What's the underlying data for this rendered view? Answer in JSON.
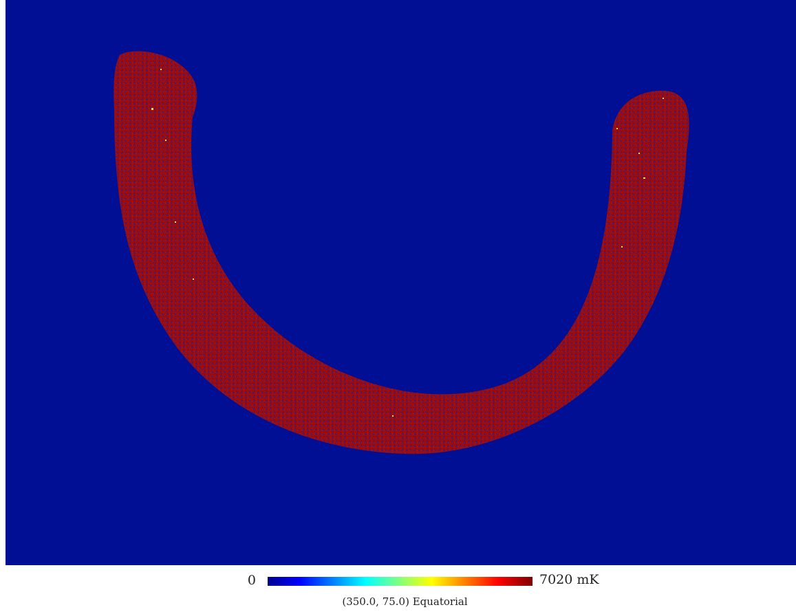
{
  "map": {
    "background_color": "#000f93",
    "band_color": "#9e0b0b",
    "band_noise_color": "#0a1fa8",
    "hot_pixel_color": "#ffe14a"
  },
  "colorbar": {
    "min_label": "0",
    "max_label": "7020 mK",
    "gradient_stops": [
      "#00008f",
      "#0000ff",
      "#00ffff",
      "#ffff00",
      "#ff0000",
      "#7f0000"
    ]
  },
  "projection_label": "(350.0, 75.0) Equatorial"
}
